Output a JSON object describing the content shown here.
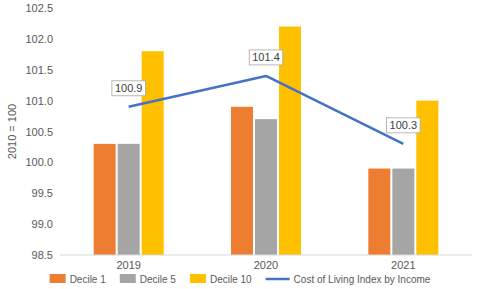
{
  "chart_data": {
    "type": "bar",
    "y_label": "2010 = 100",
    "categories": [
      "2019",
      "2020",
      "2021"
    ],
    "series": [
      {
        "name": "Decile 1",
        "type": "bar",
        "color": "#ED7D31",
        "values": [
          100.3,
          100.9,
          99.9
        ]
      },
      {
        "name": "Decile 5",
        "type": "bar",
        "color": "#A5A5A5",
        "values": [
          100.3,
          100.7,
          99.9
        ]
      },
      {
        "name": "Decile 10",
        "type": "bar",
        "color": "#FFC000",
        "values": [
          101.8,
          102.2,
          101.0
        ]
      },
      {
        "name": "Cost of Living Index by Income",
        "type": "line",
        "color": "#4472C4",
        "data_labels": true,
        "values": [
          100.9,
          101.4,
          100.3
        ]
      }
    ],
    "ylim": [
      98.5,
      102.5
    ],
    "yticks": [
      98.5,
      {
        "value": 99,
        "label": "99.0"
      },
      99.5,
      {
        "value": 100,
        "label": "100.0"
      },
      100.5,
      {
        "value": 101,
        "label": "101.0"
      },
      101.5,
      {
        "value": 102,
        "label": "102.0"
      },
      102.5
    ],
    "grid": false,
    "legend": "bottom"
  }
}
